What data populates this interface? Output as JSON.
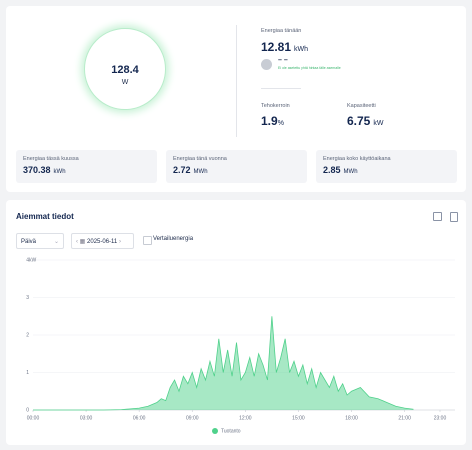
{
  "summary": {
    "power": {
      "value": 128.4,
      "unit": "W"
    },
    "today": {
      "label": "Energiaa tänään",
      "value": 12.81,
      "unit": "kWh"
    },
    "price": {
      "value": "– –",
      "note": "Ei ole asetettu yhtä hintaa tälle asemalle"
    },
    "efficiency": {
      "label": "Tehokerroin",
      "value": 1.9,
      "unit": "%"
    },
    "capacity": {
      "label": "Kapasiteetti",
      "value": 6.75,
      "unit": "kW"
    },
    "stats": [
      {
        "label": "Energiaa tässä kuussa",
        "value": 370.38,
        "unit": "kWh"
      },
      {
        "label": "Energiaa tänä vuonna",
        "value": 2.72,
        "unit": "MWh"
      },
      {
        "label": "Energiaa koko käyttöaikana",
        "value": 2.85,
        "unit": "MWh"
      }
    ]
  },
  "history": {
    "title": "Aiemmat tiedot",
    "period": "Päivä",
    "date": "2025-06-11",
    "compare": "Vertailuenergia"
  },
  "chart_data": {
    "type": "area",
    "y_label": "kW",
    "x": [
      0,
      4,
      5,
      5.5,
      6,
      6.5,
      7,
      7.25,
      7.5,
      7.75,
      8,
      8.25,
      8.5,
      8.75,
      9,
      9.25,
      9.5,
      9.75,
      10,
      10.25,
      10.5,
      10.75,
      11,
      11.25,
      11.5,
      11.75,
      12,
      12.25,
      12.5,
      12.75,
      13,
      13.25,
      13.5,
      13.75,
      14,
      14.25,
      14.5,
      14.75,
      15,
      15.25,
      15.5,
      15.75,
      16,
      16.25,
      16.5,
      16.75,
      17,
      17.25,
      17.5,
      17.75,
      18,
      18.5,
      19,
      19.5,
      20,
      20.5,
      21,
      21.5
    ],
    "series": [
      {
        "name": "Tuotanto",
        "color": "#4fd18b",
        "values": [
          0,
          0,
          0.01,
          0.03,
          0.05,
          0.1,
          0.2,
          0.3,
          0.25,
          0.6,
          0.8,
          0.5,
          0.9,
          0.7,
          1.0,
          0.6,
          1.1,
          0.8,
          1.3,
          0.9,
          1.9,
          1.0,
          1.6,
          0.9,
          1.8,
          0.8,
          1.0,
          1.4,
          0.9,
          1.5,
          1.2,
          0.8,
          2.5,
          1.0,
          1.4,
          1.9,
          1.0,
          1.3,
          0.9,
          1.2,
          0.7,
          1.1,
          0.6,
          1.0,
          0.8,
          0.6,
          0.9,
          0.5,
          0.7,
          0.4,
          0.5,
          0.6,
          0.35,
          0.3,
          0.2,
          0.1,
          0.05,
          0.02
        ]
      }
    ],
    "xlim": [
      0,
      23
    ],
    "xticks": [
      {
        "value": 0,
        "label": "00:00"
      },
      {
        "value": 3,
        "label": "03:00"
      },
      {
        "value": 6,
        "label": "06:00"
      },
      {
        "value": 9,
        "label": "09:00"
      },
      {
        "value": 12,
        "label": "12:00"
      },
      {
        "value": 15,
        "label": "15:00"
      },
      {
        "value": 18,
        "label": "18:00"
      },
      {
        "value": 21,
        "label": "21:00"
      },
      {
        "value": 23,
        "label": "23:00"
      }
    ],
    "ylim": [
      0,
      4
    ],
    "yticks": [
      0,
      1,
      2,
      3,
      4
    ],
    "grid": true
  }
}
